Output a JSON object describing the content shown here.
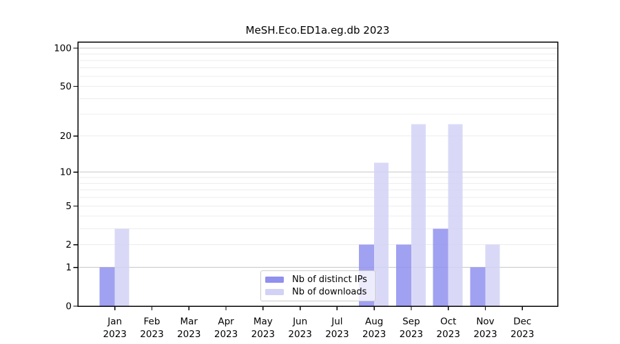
{
  "chart_data": {
    "type": "bar",
    "title": "MeSH.Eco.ED1a.eg.db 2023",
    "year": "2023",
    "categories": [
      "Jan",
      "Feb",
      "Mar",
      "Apr",
      "May",
      "Jun",
      "Jul",
      "Aug",
      "Sep",
      "Oct",
      "Nov",
      "Dec"
    ],
    "series": [
      {
        "name": "Nb of distinct IPs",
        "color": "#9090ee",
        "values": [
          1,
          0,
          0,
          0,
          0,
          0,
          0,
          2,
          2,
          3,
          1,
          0
        ]
      },
      {
        "name": "Nb of downloads",
        "color": "#d2d2f6",
        "values": [
          3,
          0,
          0,
          0,
          0,
          0,
          0,
          12,
          25,
          25,
          2,
          0
        ]
      }
    ],
    "y_axis": {
      "scale": "log1p",
      "range": [
        0,
        112
      ],
      "tick_values": [
        0,
        1,
        2,
        5,
        10,
        20,
        50,
        100
      ],
      "tick_labels": [
        "0",
        "1",
        "2",
        "5",
        "10",
        "20",
        "50",
        "100"
      ],
      "major_gridlines": [
        1,
        10,
        100
      ],
      "minor_gridlines": [
        2,
        3,
        4,
        5,
        6,
        7,
        8,
        9,
        20,
        30,
        40,
        50,
        60,
        70,
        80,
        90
      ]
    },
    "grid": true,
    "legend_position": "inside-bottom-center"
  },
  "colors": {
    "major_grid": "#c6c6c6",
    "minor_grid": "#ececec",
    "axis": "#000000"
  }
}
